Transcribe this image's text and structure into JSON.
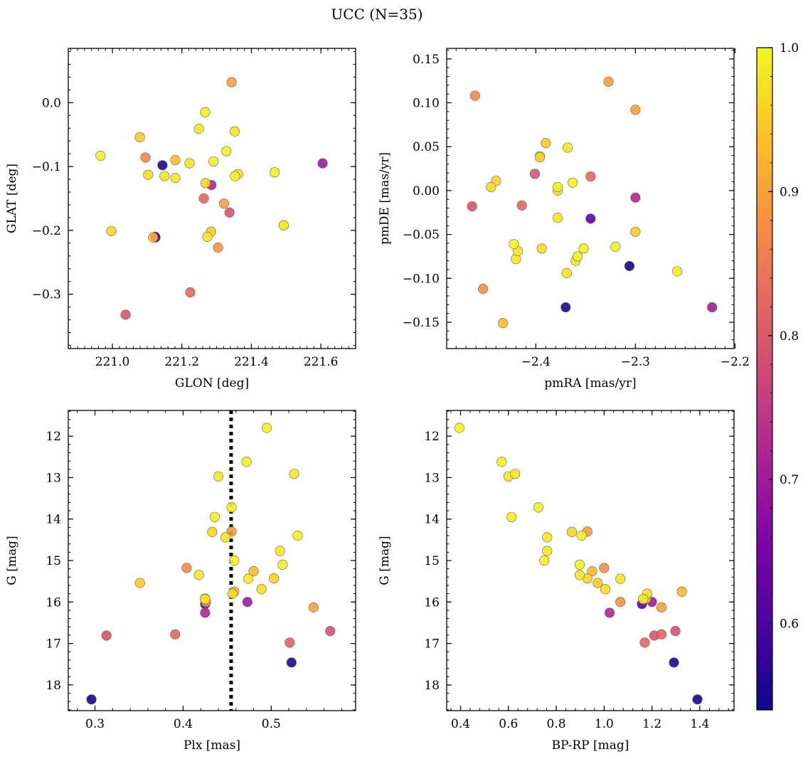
{
  "figure": {
    "title": "UCC (N=35)"
  },
  "colorbar": {
    "vmin": 0.54,
    "vmax": 1.0,
    "colormap": "plasma",
    "ticks": [
      0.6,
      0.7,
      0.8,
      0.9,
      1.0
    ],
    "tick_labels": [
      "0.6",
      "0.7",
      "0.8",
      "0.9",
      "1.0"
    ]
  },
  "stars": [
    {
      "glon": 221.343,
      "glat": 0.032,
      "pmra": -2.327,
      "pmde": 0.124,
      "plx": 0.455,
      "g": 14.3,
      "bprp": 0.93,
      "p": 0.9
    },
    {
      "glon": 221.267,
      "glat": -0.015,
      "pmra": -2.378,
      "pmde": 0.004,
      "plx": 0.455,
      "g": 13.72,
      "bprp": 0.725,
      "p": 0.99
    },
    {
      "glon": 221.079,
      "glat": -0.054,
      "pmra": -2.39,
      "pmde": 0.054,
      "plx": 0.425,
      "g": 15.92,
      "bprp": 1.175,
      "p": 0.95
    },
    {
      "glon": 220.966,
      "glat": -0.083,
      "pmra": -2.258,
      "pmde": -0.092,
      "plx": 0.495,
      "g": 11.8,
      "bprp": 0.395,
      "p": 0.99
    },
    {
      "glon": 221.352,
      "glat": -0.045,
      "pmra": -2.368,
      "pmde": 0.049,
      "plx": 0.44,
      "g": 12.97,
      "bprp": 0.6,
      "p": 0.98
    },
    {
      "glon": 221.249,
      "glat": -0.041,
      "pmra": -2.378,
      "pmde": 0.0,
      "plx": 0.51,
      "g": 14.77,
      "bprp": 0.762,
      "p": 0.98
    },
    {
      "glon": 221.328,
      "glat": -0.076,
      "pmra": -2.422,
      "pmde": -0.061,
      "plx": 0.53,
      "g": 14.4,
      "bprp": 0.906,
      "p": 0.99
    },
    {
      "glon": 221.181,
      "glat": -0.09,
      "pmra": -2.396,
      "pmde": 0.039,
      "plx": 0.48,
      "g": 15.26,
      "bprp": 0.95,
      "p": 0.93
    },
    {
      "glon": 221.095,
      "glat": -0.086,
      "pmra": -2.461,
      "pmde": 0.108,
      "plx": 0.404,
      "g": 15.18,
      "bprp": 1.0,
      "p": 0.87
    },
    {
      "glon": 221.144,
      "glat": -0.098,
      "pmra": -2.37,
      "pmde": -0.133,
      "plx": 0.523,
      "g": 17.46,
      "bprp": 1.292,
      "p": 0.56
    },
    {
      "glon": 221.222,
      "glat": -0.095,
      "pmra": -2.42,
      "pmde": -0.078,
      "plx": 0.448,
      "g": 14.44,
      "bprp": 0.762,
      "p": 0.98
    },
    {
      "glon": 221.291,
      "glat": -0.092,
      "pmra": -2.352,
      "pmde": -0.066,
      "plx": 0.458,
      "g": 15.0,
      "bprp": 0.75,
      "p": 0.99
    },
    {
      "glon": 221.103,
      "glat": -0.113,
      "pmra": -2.394,
      "pmde": -0.066,
      "plx": 0.489,
      "g": 15.69,
      "bprp": 1.005,
      "p": 0.97
    },
    {
      "glon": 221.15,
      "glat": -0.115,
      "pmra": -2.369,
      "pmde": -0.094,
      "plx": 0.418,
      "g": 15.35,
      "bprp": 0.898,
      "p": 0.98
    },
    {
      "glon": 221.181,
      "glat": -0.118,
      "pmra": -2.418,
      "pmde": -0.069,
      "plx": 0.474,
      "g": 15.44,
      "bprp": 1.068,
      "p": 0.98
    },
    {
      "glon": 221.362,
      "glat": -0.112,
      "pmra": -2.378,
      "pmde": -0.031,
      "plx": 0.526,
      "g": 12.91,
      "bprp": 0.628,
      "p": 0.98
    },
    {
      "glon": 221.353,
      "glat": -0.115,
      "pmra": -2.358,
      "pmde": -0.075,
      "plx": 0.436,
      "g": 13.95,
      "bprp": 0.613,
      "p": 0.99
    },
    {
      "glon": 221.467,
      "glat": -0.109,
      "pmra": -2.32,
      "pmde": -0.064,
      "plx": 0.472,
      "g": 12.62,
      "bprp": 0.572,
      "p": 0.99
    },
    {
      "glon": 221.605,
      "glat": -0.095,
      "pmra": -2.223,
      "pmde": -0.133,
      "plx": 0.473,
      "g": 16.0,
      "bprp": 1.2,
      "p": 0.7
    },
    {
      "glon": 221.268,
      "glat": -0.126,
      "pmra": -2.396,
      "pmde": 0.038,
      "plx": 0.433,
      "g": 14.31,
      "bprp": 0.865,
      "p": 0.96
    },
    {
      "glon": 221.285,
      "glat": -0.129,
      "pmra": -2.3,
      "pmde": -0.008,
      "plx": 0.425,
      "g": 16.26,
      "bprp": 1.023,
      "p": 0.72
    },
    {
      "glon": 221.263,
      "glat": -0.15,
      "pmra": -2.345,
      "pmde": 0.016,
      "plx": 0.391,
      "g": 16.78,
      "bprp": 1.24,
      "p": 0.82
    },
    {
      "glon": 221.321,
      "glat": -0.158,
      "pmra": -2.3,
      "pmde": 0.092,
      "plx": 0.548,
      "g": 16.13,
      "bprp": 1.24,
      "p": 0.9
    },
    {
      "glon": 221.337,
      "glat": -0.172,
      "pmra": -2.401,
      "pmde": 0.019,
      "plx": 0.567,
      "g": 16.7,
      "bprp": 1.298,
      "p": 0.79
    },
    {
      "glon": 221.493,
      "glat": -0.192,
      "pmra": -2.363,
      "pmde": 0.009,
      "plx": 0.513,
      "g": 15.1,
      "bprp": 0.898,
      "p": 0.99
    },
    {
      "glon": 221.493,
      "glat": -0.192,
      "pmra": -2.445,
      "pmde": 0.004,
      "plx": 0.456,
      "g": 15.8,
      "bprp": 1.18,
      "p": 0.97
    },
    {
      "glon": 220.997,
      "glat": -0.201,
      "pmra": -2.44,
      "pmde": 0.011,
      "plx": 0.503,
      "g": 15.43,
      "bprp": 0.93,
      "p": 0.96
    },
    {
      "glon": 221.284,
      "glat": -0.202,
      "pmra": -2.3,
      "pmde": -0.047,
      "plx": 0.351,
      "g": 15.54,
      "bprp": 0.973,
      "p": 0.95
    },
    {
      "glon": 221.273,
      "glat": -0.21,
      "pmra": -2.36,
      "pmde": -0.08,
      "plx": 0.425,
      "g": 15.93,
      "bprp": 1.163,
      "p": 0.98
    },
    {
      "glon": 221.123,
      "glat": -0.21,
      "pmra": -2.345,
      "pmde": -0.032,
      "plx": 0.425,
      "g": 16.05,
      "bprp": 1.158,
      "p": 0.62
    },
    {
      "glon": 221.117,
      "glat": -0.211,
      "pmra": -2.433,
      "pmde": -0.151,
      "plx": 0.458,
      "g": 15.75,
      "bprp": 1.325,
      "p": 0.93
    },
    {
      "glon": 221.304,
      "glat": -0.227,
      "pmra": -2.453,
      "pmde": -0.112,
      "plx": 0.426,
      "g": 16.0,
      "bprp": 1.068,
      "p": 0.88
    },
    {
      "glon": 221.224,
      "glat": -0.297,
      "pmra": -2.414,
      "pmde": -0.017,
      "plx": 0.521,
      "g": 16.98,
      "bprp": 1.17,
      "p": 0.82
    },
    {
      "glon": 221.038,
      "glat": -0.332,
      "pmra": -2.464,
      "pmde": -0.018,
      "plx": 0.313,
      "g": 16.81,
      "bprp": 1.21,
      "p": 0.79
    },
    {
      "glon": 221.124,
      "glat": -0.211,
      "pmra": -2.306,
      "pmde": -0.086,
      "plx": 0.296,
      "g": 18.35,
      "bprp": 1.39,
      "p": 0.55
    }
  ],
  "panels": [
    {
      "key": "glon-glat",
      "x": "glon",
      "y": "glat",
      "xlabel": "GLON [deg]",
      "ylabel": "GLAT [deg]",
      "xlim": [
        220.873,
        221.7
      ],
      "ylim": [
        -0.385,
        0.085
      ],
      "yinvert": false,
      "xticks": [
        221.0,
        221.2,
        221.4,
        221.6
      ],
      "xticklabels": [
        "221.0",
        "221.2",
        "221.4",
        "221.6"
      ],
      "yticks": [
        0.0,
        -0.1,
        -0.2,
        -0.3
      ],
      "yticklabels": [
        "0.0",
        "−0.1",
        "−0.2",
        "−0.3"
      ],
      "xminor": 0.02,
      "yminor": 0.02
    },
    {
      "key": "pmra-pmde",
      "x": "pmra",
      "y": "pmde",
      "xlabel": "pmRA [mas/yr]",
      "ylabel": "pmDE [mas/yr]",
      "xlim": [
        -2.4895,
        -2.201
      ],
      "ylim": [
        -0.18,
        0.162
      ],
      "yinvert": false,
      "xticks": [
        -2.4,
        -2.3,
        -2.2
      ],
      "xticklabels": [
        "−2.4",
        "−2.3",
        "−2.2"
      ],
      "yticks": [
        0.15,
        0.1,
        0.05,
        0.0,
        -0.05,
        -0.1,
        -0.15
      ],
      "yticklabels": [
        "0.15",
        "0.10",
        "0.05",
        "0.00",
        "−0.05",
        "−0.10",
        "−0.15"
      ],
      "xminor": 0.01,
      "yminor": 0.01
    },
    {
      "key": "plx-g",
      "x": "plx",
      "y": "g",
      "xlabel": "Plx [mas]",
      "ylabel": "G [mag]",
      "xlim": [
        0.2697,
        0.5958
      ],
      "ylim": [
        11.38,
        18.62
      ],
      "yinvert": true,
      "xticks": [
        0.3,
        0.4,
        0.5
      ],
      "xticklabels": [
        "0.3",
        "0.4",
        "0.5"
      ],
      "yticks": [
        12,
        13,
        14,
        15,
        16,
        17,
        18
      ],
      "yticklabels": [
        "12",
        "13",
        "14",
        "15",
        "16",
        "17",
        "18"
      ],
      "xminor": 0.02,
      "yminor": 0.2,
      "vline": 0.4545
    },
    {
      "key": "bprp-g",
      "x": "bprp",
      "y": "g",
      "xlabel": "BP-RP [mag]",
      "ylabel": "G [mag]",
      "xlim": [
        0.342,
        1.543
      ],
      "ylim": [
        11.38,
        18.62
      ],
      "yinvert": true,
      "xticks": [
        0.4,
        0.6,
        0.8,
        1.0,
        1.2,
        1.4
      ],
      "xticklabels": [
        "0.4",
        "0.6",
        "0.8",
        "1.0",
        "1.2",
        "1.4"
      ],
      "yticks": [
        12,
        13,
        14,
        15,
        16,
        17,
        18
      ],
      "yticklabels": [
        "12",
        "13",
        "14",
        "15",
        "16",
        "17",
        "18"
      ],
      "xminor": 0.04,
      "yminor": 0.2
    }
  ],
  "chart_data": [
    {
      "type": "scatter",
      "xlabel": "GLON [deg]",
      "ylabel": "GLAT [deg]",
      "x_field": "glon",
      "y_field": "glat",
      "color_field": "p",
      "xlim": [
        220.873,
        221.7
      ],
      "ylim": [
        -0.385,
        0.085
      ]
    },
    {
      "type": "scatter",
      "xlabel": "pmRA [mas/yr]",
      "ylabel": "pmDE [mas/yr]",
      "x_field": "pmra",
      "y_field": "pmde",
      "color_field": "p",
      "xlim": [
        -2.4895,
        -2.201
      ],
      "ylim": [
        -0.18,
        0.162
      ]
    },
    {
      "type": "scatter",
      "xlabel": "Plx [mas]",
      "ylabel": "G [mag]",
      "x_field": "plx",
      "y_field": "g",
      "color_field": "p",
      "xlim": [
        0.2697,
        0.5958
      ],
      "ylim": [
        18.62,
        11.38
      ],
      "vertical_line": 0.4545,
      "vertical_line_style": "dotted"
    },
    {
      "type": "scatter",
      "xlabel": "BP-RP [mag]",
      "ylabel": "G [mag]",
      "x_field": "bprp",
      "y_field": "g",
      "color_field": "p",
      "xlim": [
        0.342,
        1.543
      ],
      "ylim": [
        18.62,
        11.38
      ]
    }
  ]
}
